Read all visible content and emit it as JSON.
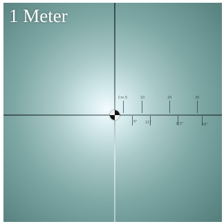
{
  "overlay": {
    "distance_label": "1 Meter"
  },
  "scale": {
    "top_labels": [
      "Cm.5",
      "10",
      "20",
      "30"
    ],
    "bottom_labels": [
      "5\"",
      "11\"",
      "8.5\"",
      "18\""
    ]
  }
}
